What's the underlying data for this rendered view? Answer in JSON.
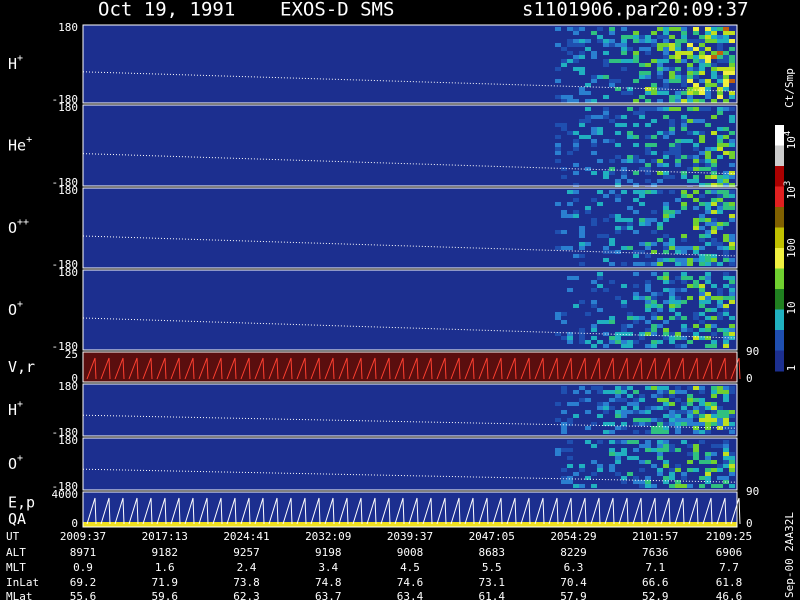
{
  "header": {
    "date": "Oct 19, 1991",
    "instrument": "EXOS-D SMS",
    "file": "s1101906.par",
    "time": "20:09:37"
  },
  "panels": [
    {
      "label": "H",
      "sup": "+",
      "ticks": [
        "180",
        "-180"
      ]
    },
    {
      "label": "He",
      "sup": "+",
      "ticks": [
        "180",
        "-180"
      ]
    },
    {
      "label": "O",
      "sup": "++",
      "ticks": [
        "180",
        "-180"
      ]
    },
    {
      "label": "O",
      "sup": "+",
      "ticks": [
        "180",
        "-180"
      ]
    },
    {
      "label": "V,r",
      "ticks": [
        "25",
        "0"
      ],
      "right_ticks": [
        "90",
        "0"
      ]
    },
    {
      "label": "H",
      "sup": "+",
      "ticks": [
        "180",
        "-180"
      ]
    },
    {
      "label": "O",
      "sup": "+",
      "ticks": [
        "180",
        "-180"
      ]
    },
    {
      "label": "E,p",
      "label2": "QA",
      "ticks": [
        "4000",
        "0"
      ],
      "right_ticks": [
        "90",
        "0"
      ]
    }
  ],
  "colorbar": {
    "unit": "Ct/Smp",
    "ticks": [
      {
        "base": "10",
        "exp": "4"
      },
      {
        "base": "10",
        "exp": "3"
      },
      {
        "base": "100"
      },
      {
        "base": "10"
      },
      {
        "base": "1"
      }
    ]
  },
  "footer": {
    "rows": [
      {
        "label": "UT",
        "values": [
          "2009:37",
          "2017:13",
          "2024:41",
          "2032:09",
          "2039:37",
          "2047:05",
          "2054:29",
          "2101:57",
          "2109:25"
        ]
      },
      {
        "label": "ALT",
        "values": [
          "8971",
          "9182",
          "9257",
          "9198",
          "9008",
          "8683",
          "8229",
          "7636",
          "6906"
        ]
      },
      {
        "label": "MLT",
        "values": [
          "0.9",
          "1.6",
          "2.4",
          "3.4",
          "4.5",
          "5.5",
          "6.3",
          "7.1",
          "7.7"
        ]
      },
      {
        "label": "InLat",
        "values": [
          "69.2",
          "71.9",
          "73.8",
          "74.8",
          "74.6",
          "73.1",
          "70.4",
          "66.6",
          "61.8"
        ]
      },
      {
        "label": "MLat",
        "values": [
          "55.6",
          "59.6",
          "62.3",
          "63.7",
          "63.4",
          "61.4",
          "57.9",
          "52.9",
          "46.6"
        ]
      }
    ]
  },
  "stamp": "Sep-00  2AA32L"
}
